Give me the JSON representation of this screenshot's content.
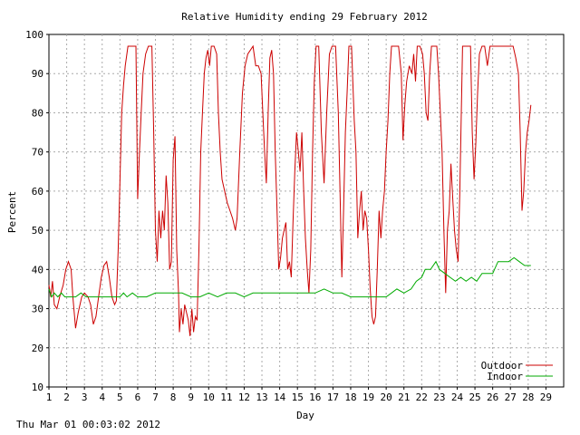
{
  "footer_timestamp": "Thu Mar 01 00:03:02 2012",
  "chart_data": {
    "type": "line",
    "title": "Relative Humidity ending 29 February 2012",
    "xlabel": "Day",
    "ylabel": "Percent",
    "xlim": [
      1,
      30
    ],
    "ylim": [
      10,
      100
    ],
    "x_ticks": [
      1,
      2,
      3,
      4,
      5,
      6,
      7,
      8,
      9,
      10,
      11,
      12,
      13,
      14,
      15,
      16,
      17,
      18,
      19,
      20,
      21,
      22,
      23,
      24,
      25,
      26,
      27,
      28,
      29
    ],
    "y_ticks": [
      10,
      20,
      30,
      40,
      50,
      60,
      70,
      80,
      90,
      100
    ],
    "grid": true,
    "legend_position": "bottom-right",
    "series": [
      {
        "name": "Outdoor",
        "color": "#cc0000",
        "points": [
          [
            1.0,
            36
          ],
          [
            1.1,
            33
          ],
          [
            1.2,
            37
          ],
          [
            1.3,
            31
          ],
          [
            1.45,
            30
          ],
          [
            1.6,
            33
          ],
          [
            1.8,
            36
          ],
          [
            1.95,
            40
          ],
          [
            2.1,
            42
          ],
          [
            2.25,
            40
          ],
          [
            2.35,
            33
          ],
          [
            2.5,
            25
          ],
          [
            2.65,
            29
          ],
          [
            2.85,
            33
          ],
          [
            3.0,
            34
          ],
          [
            3.2,
            33
          ],
          [
            3.35,
            31
          ],
          [
            3.5,
            26
          ],
          [
            3.65,
            28
          ],
          [
            3.8,
            33
          ],
          [
            3.95,
            38
          ],
          [
            4.1,
            41
          ],
          [
            4.25,
            42
          ],
          [
            4.4,
            38
          ],
          [
            4.55,
            33
          ],
          [
            4.7,
            31
          ],
          [
            4.8,
            32
          ],
          [
            4.9,
            45
          ],
          [
            5.0,
            62
          ],
          [
            5.1,
            80
          ],
          [
            5.2,
            87
          ],
          [
            5.3,
            92
          ],
          [
            5.45,
            97
          ],
          [
            5.6,
            97
          ],
          [
            5.75,
            97
          ],
          [
            5.9,
            97
          ],
          [
            6.0,
            58
          ],
          [
            6.1,
            70
          ],
          [
            6.2,
            80
          ],
          [
            6.3,
            90
          ],
          [
            6.45,
            95
          ],
          [
            6.6,
            97
          ],
          [
            6.8,
            97
          ],
          [
            6.9,
            75
          ],
          [
            7.0,
            50
          ],
          [
            7.1,
            42
          ],
          [
            7.2,
            55
          ],
          [
            7.3,
            48
          ],
          [
            7.4,
            55
          ],
          [
            7.5,
            50
          ],
          [
            7.6,
            64
          ],
          [
            7.7,
            57
          ],
          [
            7.8,
            40
          ],
          [
            7.9,
            42
          ],
          [
            8.0,
            68
          ],
          [
            8.1,
            74
          ],
          [
            8.2,
            45
          ],
          [
            8.3,
            34
          ],
          [
            8.35,
            24
          ],
          [
            8.45,
            30
          ],
          [
            8.55,
            26
          ],
          [
            8.65,
            31
          ],
          [
            8.75,
            29
          ],
          [
            8.85,
            27
          ],
          [
            8.95,
            23
          ],
          [
            9.05,
            30
          ],
          [
            9.15,
            24
          ],
          [
            9.25,
            28
          ],
          [
            9.35,
            27
          ],
          [
            9.45,
            45
          ],
          [
            9.55,
            70
          ],
          [
            9.65,
            80
          ],
          [
            9.75,
            90
          ],
          [
            9.85,
            94
          ],
          [
            9.95,
            96
          ],
          [
            10.05,
            92
          ],
          [
            10.15,
            97
          ],
          [
            10.3,
            97
          ],
          [
            10.45,
            95
          ],
          [
            10.55,
            80
          ],
          [
            10.65,
            70
          ],
          [
            10.75,
            63
          ],
          [
            10.9,
            60
          ],
          [
            11.05,
            57
          ],
          [
            11.2,
            55
          ],
          [
            11.35,
            53
          ],
          [
            11.5,
            50
          ],
          [
            11.6,
            53
          ],
          [
            11.75,
            70
          ],
          [
            11.9,
            85
          ],
          [
            12.05,
            92
          ],
          [
            12.2,
            95
          ],
          [
            12.35,
            96
          ],
          [
            12.5,
            97
          ],
          [
            12.65,
            92
          ],
          [
            12.8,
            92
          ],
          [
            12.95,
            90
          ],
          [
            13.05,
            80
          ],
          [
            13.15,
            70
          ],
          [
            13.25,
            62
          ],
          [
            13.35,
            80
          ],
          [
            13.45,
            94
          ],
          [
            13.55,
            96
          ],
          [
            13.65,
            90
          ],
          [
            13.75,
            70
          ],
          [
            13.85,
            55
          ],
          [
            13.95,
            40
          ],
          [
            14.05,
            43
          ],
          [
            14.15,
            48
          ],
          [
            14.25,
            50
          ],
          [
            14.35,
            52
          ],
          [
            14.45,
            40
          ],
          [
            14.55,
            42
          ],
          [
            14.65,
            38
          ],
          [
            14.75,
            52
          ],
          [
            14.85,
            65
          ],
          [
            14.95,
            75
          ],
          [
            15.05,
            70
          ],
          [
            15.15,
            65
          ],
          [
            15.25,
            75
          ],
          [
            15.35,
            60
          ],
          [
            15.45,
            48
          ],
          [
            15.55,
            40
          ],
          [
            15.65,
            34
          ],
          [
            15.75,
            45
          ],
          [
            15.85,
            70
          ],
          [
            15.95,
            88
          ],
          [
            16.05,
            97
          ],
          [
            16.2,
            97
          ],
          [
            16.35,
            75
          ],
          [
            16.5,
            62
          ],
          [
            16.65,
            80
          ],
          [
            16.8,
            95
          ],
          [
            16.95,
            97
          ],
          [
            17.15,
            97
          ],
          [
            17.3,
            80
          ],
          [
            17.4,
            60
          ],
          [
            17.5,
            38
          ],
          [
            17.6,
            55
          ],
          [
            17.7,
            75
          ],
          [
            17.8,
            85
          ],
          [
            17.9,
            97
          ],
          [
            18.05,
            97
          ],
          [
            18.2,
            78
          ],
          [
            18.3,
            70
          ],
          [
            18.4,
            48
          ],
          [
            18.5,
            55
          ],
          [
            18.6,
            60
          ],
          [
            18.7,
            50
          ],
          [
            18.8,
            55
          ],
          [
            18.9,
            53
          ],
          [
            19.0,
            45
          ],
          [
            19.1,
            35
          ],
          [
            19.2,
            28
          ],
          [
            19.3,
            26
          ],
          [
            19.4,
            28
          ],
          [
            19.5,
            40
          ],
          [
            19.6,
            55
          ],
          [
            19.7,
            48
          ],
          [
            19.8,
            55
          ],
          [
            19.9,
            60
          ],
          [
            20.0,
            70
          ],
          [
            20.1,
            78
          ],
          [
            20.2,
            90
          ],
          [
            20.3,
            97
          ],
          [
            20.5,
            97
          ],
          [
            20.7,
            97
          ],
          [
            20.85,
            90
          ],
          [
            20.95,
            73
          ],
          [
            21.05,
            82
          ],
          [
            21.15,
            88
          ],
          [
            21.3,
            92
          ],
          [
            21.45,
            90
          ],
          [
            21.55,
            95
          ],
          [
            21.65,
            88
          ],
          [
            21.75,
            97
          ],
          [
            21.9,
            97
          ],
          [
            22.05,
            95
          ],
          [
            22.15,
            90
          ],
          [
            22.25,
            80
          ],
          [
            22.35,
            78
          ],
          [
            22.45,
            90
          ],
          [
            22.55,
            97
          ],
          [
            22.7,
            97
          ],
          [
            22.85,
            97
          ],
          [
            22.95,
            90
          ],
          [
            23.05,
            80
          ],
          [
            23.15,
            70
          ],
          [
            23.25,
            50
          ],
          [
            23.35,
            34
          ],
          [
            23.45,
            50
          ],
          [
            23.55,
            55
          ],
          [
            23.65,
            67
          ],
          [
            23.75,
            58
          ],
          [
            23.85,
            50
          ],
          [
            23.95,
            45
          ],
          [
            24.05,
            42
          ],
          [
            24.15,
            60
          ],
          [
            24.3,
            97
          ],
          [
            24.45,
            97
          ],
          [
            24.6,
            97
          ],
          [
            24.75,
            97
          ],
          [
            24.85,
            75
          ],
          [
            24.95,
            63
          ],
          [
            25.05,
            72
          ],
          [
            25.15,
            85
          ],
          [
            25.25,
            95
          ],
          [
            25.4,
            97
          ],
          [
            25.55,
            97
          ],
          [
            25.7,
            92
          ],
          [
            25.85,
            97
          ],
          [
            26.05,
            97
          ],
          [
            26.25,
            97
          ],
          [
            26.45,
            97
          ],
          [
            26.65,
            97
          ],
          [
            26.85,
            97
          ],
          [
            27.0,
            97
          ],
          [
            27.15,
            97
          ],
          [
            27.3,
            94
          ],
          [
            27.45,
            90
          ],
          [
            27.55,
            75
          ],
          [
            27.65,
            55
          ],
          [
            27.75,
            60
          ],
          [
            27.85,
            70
          ],
          [
            27.95,
            75
          ],
          [
            28.05,
            78
          ],
          [
            28.15,
            82
          ]
        ]
      },
      {
        "name": "Indoor",
        "color": "#00aa00",
        "points": [
          [
            1.0,
            35
          ],
          [
            1.15,
            33
          ],
          [
            1.3,
            34
          ],
          [
            1.5,
            33
          ],
          [
            1.7,
            34
          ],
          [
            1.9,
            33
          ],
          [
            2.2,
            33
          ],
          [
            2.5,
            33
          ],
          [
            2.8,
            34
          ],
          [
            3.1,
            33
          ],
          [
            3.5,
            33
          ],
          [
            4.0,
            33
          ],
          [
            4.5,
            33
          ],
          [
            5.0,
            33
          ],
          [
            5.2,
            34
          ],
          [
            5.4,
            33
          ],
          [
            5.7,
            34
          ],
          [
            6.0,
            33
          ],
          [
            6.5,
            33
          ],
          [
            7.0,
            34
          ],
          [
            7.5,
            34
          ],
          [
            8.0,
            34
          ],
          [
            8.5,
            34
          ],
          [
            9.0,
            33
          ],
          [
            9.5,
            33
          ],
          [
            10.0,
            34
          ],
          [
            10.5,
            33
          ],
          [
            11.0,
            34
          ],
          [
            11.5,
            34
          ],
          [
            12.0,
            33
          ],
          [
            12.5,
            34
          ],
          [
            13.0,
            34
          ],
          [
            13.5,
            34
          ],
          [
            14.0,
            34
          ],
          [
            14.5,
            34
          ],
          [
            15.0,
            34
          ],
          [
            15.5,
            34
          ],
          [
            16.0,
            34
          ],
          [
            16.5,
            35
          ],
          [
            17.0,
            34
          ],
          [
            17.5,
            34
          ],
          [
            18.0,
            33
          ],
          [
            18.5,
            33
          ],
          [
            19.0,
            33
          ],
          [
            19.5,
            33
          ],
          [
            20.0,
            33
          ],
          [
            20.3,
            34
          ],
          [
            20.6,
            35
          ],
          [
            21.0,
            34
          ],
          [
            21.4,
            35
          ],
          [
            21.7,
            37
          ],
          [
            22.0,
            38
          ],
          [
            22.2,
            40
          ],
          [
            22.5,
            40
          ],
          [
            22.8,
            42
          ],
          [
            23.0,
            40
          ],
          [
            23.3,
            39
          ],
          [
            23.6,
            38
          ],
          [
            23.9,
            37
          ],
          [
            24.2,
            38
          ],
          [
            24.5,
            37
          ],
          [
            24.8,
            38
          ],
          [
            25.1,
            37
          ],
          [
            25.4,
            39
          ],
          [
            25.7,
            39
          ],
          [
            26.0,
            39
          ],
          [
            26.3,
            42
          ],
          [
            26.6,
            42
          ],
          [
            26.9,
            42
          ],
          [
            27.2,
            43
          ],
          [
            27.5,
            42
          ],
          [
            27.8,
            41
          ],
          [
            28.15,
            41
          ]
        ]
      }
    ]
  }
}
